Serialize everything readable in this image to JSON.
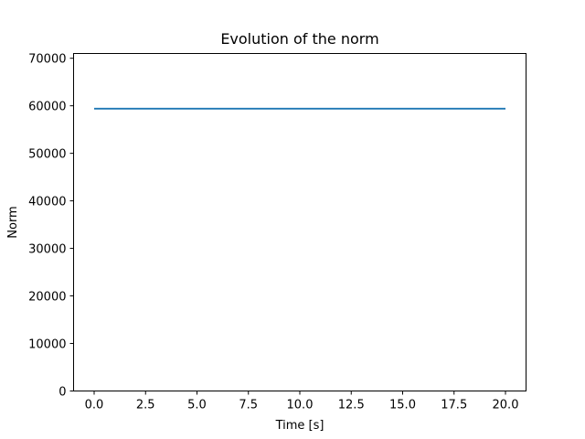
{
  "chart_data": {
    "type": "line",
    "title": "Evolution of the norm",
    "xlabel": "Time [s]",
    "ylabel": "Norm",
    "xlim": [
      -1,
      21
    ],
    "ylim": [
      0,
      71000
    ],
    "xticks": [
      0.0,
      2.5,
      5.0,
      7.5,
      10.0,
      12.5,
      15.0,
      17.5,
      20.0
    ],
    "xtick_labels": [
      "0.0",
      "2.5",
      "5.0",
      "7.5",
      "10.0",
      "12.5",
      "15.0",
      "17.5",
      "20.0"
    ],
    "yticks": [
      0,
      10000,
      20000,
      30000,
      40000,
      50000,
      60000,
      70000
    ],
    "ytick_labels": [
      "0",
      "10000",
      "20000",
      "30000",
      "40000",
      "50000",
      "60000",
      "70000"
    ],
    "grid": false,
    "series": [
      {
        "color": "#1f77b4",
        "x": [
          0,
          20
        ],
        "y": [
          59400,
          59400
        ]
      }
    ]
  }
}
